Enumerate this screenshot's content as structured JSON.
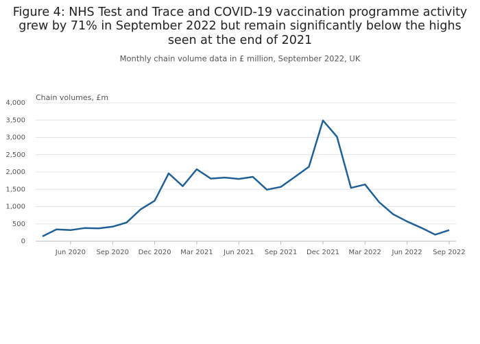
{
  "chart_data": {
    "type": "line",
    "title": [
      "Figure 4: NHS Test and Trace and COVID-19 vaccination programme activity",
      "grew by 71% in September 2022 but remain significantly below the highs",
      "seen at the end of 2021"
    ],
    "subtitle": "Monthly chain volume data in £ million, September 2022, UK",
    "y_axis_label": "Chain volumes, £m",
    "x": [
      "2020-04",
      "2020-05",
      "2020-06",
      "2020-07",
      "2020-08",
      "2020-09",
      "2020-10",
      "2020-11",
      "2020-12",
      "2021-01",
      "2021-02",
      "2021-03",
      "2021-04",
      "2021-05",
      "2021-06",
      "2021-07",
      "2021-08",
      "2021-09",
      "2021-10",
      "2021-11",
      "2021-12",
      "2022-01",
      "2022-02",
      "2022-03",
      "2022-04",
      "2022-05",
      "2022-06",
      "2022-07",
      "2022-08",
      "2022-09"
    ],
    "series": [
      {
        "color": "#206095",
        "values": [
          140,
          340,
          320,
          380,
          370,
          420,
          540,
          920,
          1170,
          1960,
          1590,
          2080,
          1810,
          1840,
          1800,
          1860,
          1490,
          1570,
          1860,
          2150,
          3490,
          3020,
          1540,
          1640,
          1130,
          780,
          570,
          390,
          190,
          320
        ]
      }
    ],
    "xlim": [
      "2020-04",
      "2022-09"
    ],
    "xticks": [
      {
        "value": "2020-06",
        "label": "Jun 2020"
      },
      {
        "value": "2020-09",
        "label": "Sep 2020"
      },
      {
        "value": "2020-12",
        "label": "Dec 2020"
      },
      {
        "value": "2021-03",
        "label": "Mar 2021"
      },
      {
        "value": "2021-06",
        "label": "Jun 2021"
      },
      {
        "value": "2021-09",
        "label": "Sep 2021"
      },
      {
        "value": "2021-12",
        "label": "Dec 2021"
      },
      {
        "value": "2022-03",
        "label": "Mar 2022"
      },
      {
        "value": "2022-06",
        "label": "Jun 2022"
      },
      {
        "value": "2022-09",
        "label": "Sep 2022"
      }
    ],
    "ylim": [
      0,
      4000
    ],
    "yticks": [
      0,
      500,
      {
        "value": 1000,
        "label": "1,000"
      },
      {
        "value": 1500,
        "label": "1,500"
      },
      {
        "value": 2000,
        "label": "2,000"
      },
      {
        "value": 2500,
        "label": "2,500"
      },
      {
        "value": 3000,
        "label": "3,000"
      },
      {
        "value": 3500,
        "label": "3,500"
      },
      {
        "value": 4000,
        "label": "4,000"
      }
    ],
    "grid": true
  }
}
